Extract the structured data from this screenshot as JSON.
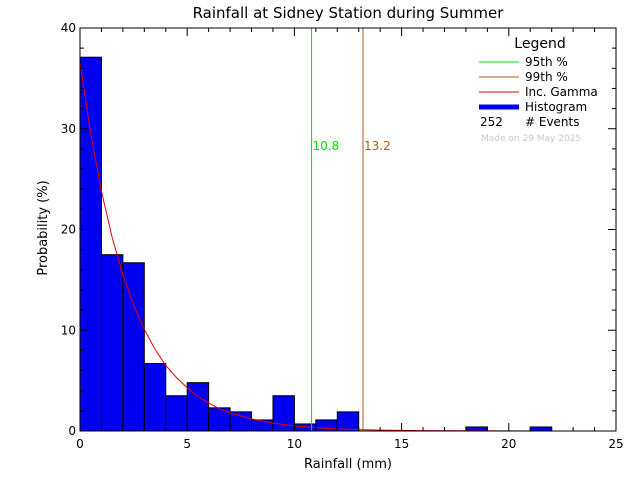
{
  "chart_data": {
    "type": "bar",
    "title": "Rainfall at Sidney Station during Summer",
    "xlabel": "Rainfall (mm)",
    "ylabel": "Probability (%)",
    "xlim": [
      0,
      25
    ],
    "ylim": [
      0,
      40
    ],
    "xticks": [
      0,
      5,
      10,
      15,
      20,
      25
    ],
    "yticks": [
      0,
      10,
      20,
      30,
      40
    ],
    "bin_width": 1,
    "histogram": [
      {
        "x0": 0,
        "x1": 1,
        "value": 37.1
      },
      {
        "x0": 1,
        "x1": 2,
        "value": 17.5
      },
      {
        "x0": 2,
        "x1": 3,
        "value": 16.7
      },
      {
        "x0": 3,
        "x1": 4,
        "value": 6.7
      },
      {
        "x0": 4,
        "x1": 5,
        "value": 3.5
      },
      {
        "x0": 5,
        "x1": 6,
        "value": 4.8
      },
      {
        "x0": 6,
        "x1": 7,
        "value": 2.3
      },
      {
        "x0": 7,
        "x1": 8,
        "value": 1.9
      },
      {
        "x0": 8,
        "x1": 9,
        "value": 1.1
      },
      {
        "x0": 9,
        "x1": 10,
        "value": 3.5
      },
      {
        "x0": 10,
        "x1": 11,
        "value": 0.7
      },
      {
        "x0": 11,
        "x1": 12,
        "value": 1.1
      },
      {
        "x0": 12,
        "x1": 13,
        "value": 1.9
      },
      {
        "x0": 18,
        "x1": 19,
        "value": 0.4
      },
      {
        "x0": 21,
        "x1": 22,
        "value": 0.4
      }
    ],
    "gamma_curve": [
      [
        0.0,
        36.6
      ],
      [
        0.5,
        29.5
      ],
      [
        1.0,
        23.8
      ],
      [
        1.5,
        19.2
      ],
      [
        2.0,
        15.5
      ],
      [
        2.5,
        12.5
      ],
      [
        3.0,
        10.1
      ],
      [
        3.5,
        8.1
      ],
      [
        4.0,
        6.5
      ],
      [
        4.5,
        5.3
      ],
      [
        5.0,
        4.3
      ],
      [
        5.5,
        3.4
      ],
      [
        6.0,
        2.8
      ],
      [
        6.5,
        2.2
      ],
      [
        7.0,
        1.8
      ],
      [
        7.5,
        1.5
      ],
      [
        8.0,
        1.2
      ],
      [
        9.0,
        0.78
      ],
      [
        10.0,
        0.51
      ],
      [
        11.0,
        0.33
      ],
      [
        12.0,
        0.21
      ],
      [
        13.0,
        0.14
      ],
      [
        14.0,
        0.09
      ],
      [
        15.0,
        0.06
      ],
      [
        16.0,
        0.04
      ],
      [
        18.0,
        0.015
      ],
      [
        20.0,
        0.006
      ],
      [
        22.0,
        0.002
      ],
      [
        25.0,
        0.0
      ]
    ],
    "percentiles": [
      {
        "label": "95th %",
        "value": 10.8,
        "value_label": "10.8",
        "color": "#00e000"
      },
      {
        "label": "99th %",
        "value": 13.2,
        "value_label": "13.2",
        "color": "#b05a1e"
      }
    ],
    "legend": {
      "title": "Legend",
      "position": "top-right",
      "entries": [
        {
          "label": "95th %",
          "color": "#00e000",
          "style": "line"
        },
        {
          "label": "99th %",
          "color": "#b05a1e",
          "style": "line"
        },
        {
          "label": "Inc. Gamma",
          "color": "#e00000",
          "style": "line"
        },
        {
          "label": "Histogram",
          "color": "#0000f0",
          "style": "thick"
        }
      ],
      "events_count": "252",
      "events_label": "# Events",
      "made_on": "Made on 29 May 2025"
    },
    "colors": {
      "bar_fill": "#0000f0",
      "bar_stroke": "#000000",
      "gamma": "#e00000",
      "axis": "#000000"
    }
  }
}
